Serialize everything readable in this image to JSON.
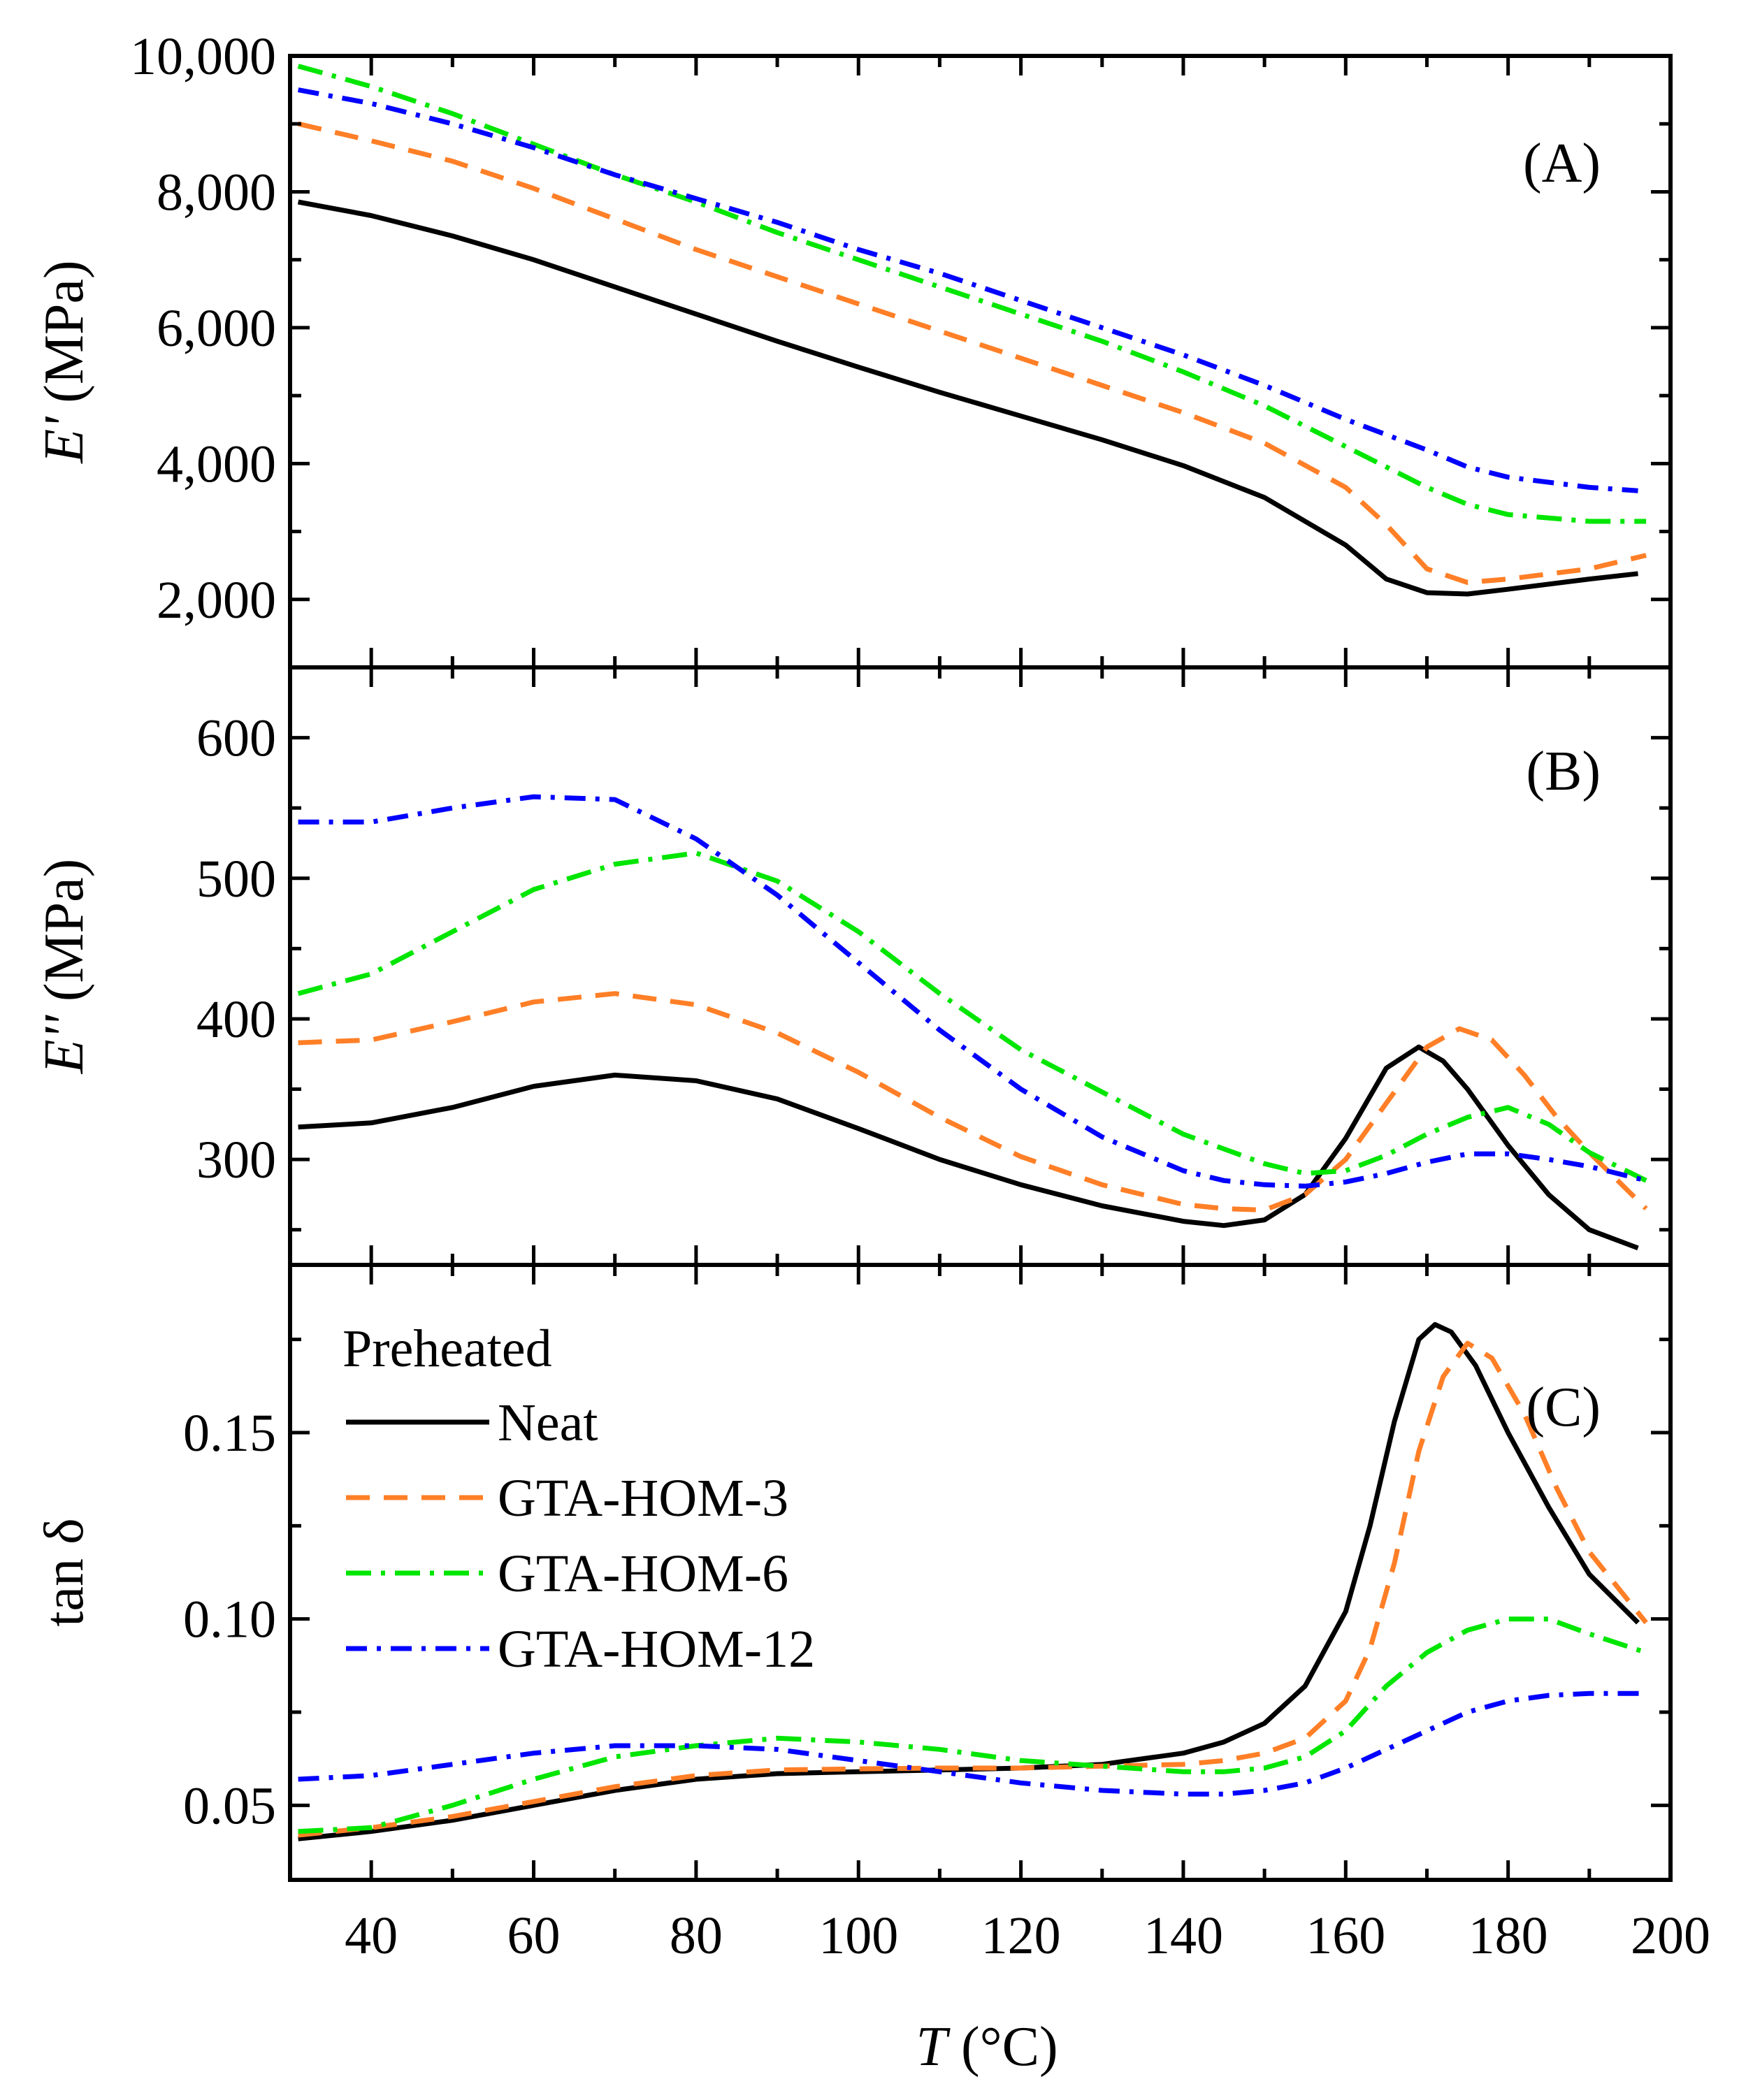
{
  "chart_data": [
    {
      "type": "line",
      "panel_label": "(A)",
      "ylabel_symbol": "E'",
      "ylabel_unit": "(MPa)",
      "ylim": [
        1000,
        10000
      ],
      "yticks": [
        2000,
        4000,
        6000,
        8000,
        10000
      ],
      "ytick_labels": [
        "2,000",
        "4,000",
        "6,000",
        "8,000",
        "10,000"
      ],
      "series": [
        {
          "name": "Neat",
          "x": [
            31,
            40,
            50,
            60,
            70,
            80,
            90,
            100,
            110,
            120,
            130,
            140,
            150,
            160,
            165,
            170,
            175,
            180,
            190,
            196
          ],
          "values": [
            7850,
            7650,
            7350,
            7000,
            6600,
            6200,
            5800,
            5420,
            5050,
            4700,
            4350,
            3970,
            3500,
            2800,
            2300,
            2100,
            2080,
            2150,
            2300,
            2380
          ]
        },
        {
          "name": "GTA-HOM-3",
          "x": [
            31,
            40,
            50,
            60,
            70,
            80,
            90,
            100,
            110,
            120,
            130,
            140,
            150,
            160,
            165,
            170,
            175,
            180,
            190,
            197
          ],
          "values": [
            9000,
            8750,
            8450,
            8050,
            7600,
            7150,
            6750,
            6350,
            5950,
            5550,
            5150,
            4750,
            4300,
            3650,
            3100,
            2450,
            2250,
            2300,
            2450,
            2650
          ]
        },
        {
          "name": "GTA-HOM-6",
          "x": [
            31,
            40,
            50,
            60,
            70,
            80,
            90,
            100,
            110,
            120,
            130,
            140,
            150,
            160,
            170,
            175,
            180,
            190,
            197
          ],
          "values": [
            9850,
            9550,
            9150,
            8700,
            8250,
            7850,
            7400,
            7000,
            6600,
            6200,
            5800,
            5350,
            4850,
            4250,
            3650,
            3400,
            3250,
            3150,
            3150
          ]
        },
        {
          "name": "GTA-HOM-12",
          "x": [
            31,
            40,
            50,
            60,
            70,
            80,
            90,
            100,
            110,
            120,
            130,
            140,
            150,
            160,
            170,
            175,
            180,
            190,
            196
          ],
          "values": [
            9500,
            9300,
            9000,
            8650,
            8250,
            7900,
            7550,
            7150,
            6800,
            6400,
            6000,
            5600,
            5150,
            4650,
            4200,
            3950,
            3800,
            3650,
            3600
          ]
        }
      ]
    },
    {
      "type": "line",
      "panel_label": "(B)",
      "ylabel_symbol": "E''",
      "ylabel_unit": "(MPa)",
      "ylim": [
        225,
        650
      ],
      "yticks": [
        300,
        400,
        500,
        600
      ],
      "ytick_labels": [
        "300",
        "400",
        "500",
        "600"
      ],
      "series": [
        {
          "name": "Neat",
          "x": [
            31,
            40,
            50,
            60,
            70,
            80,
            90,
            100,
            110,
            120,
            130,
            140,
            145,
            150,
            155,
            160,
            165,
            169,
            172,
            175,
            180,
            185,
            190,
            196
          ],
          "values": [
            323,
            326,
            337,
            352,
            360,
            356,
            343,
            322,
            300,
            282,
            267,
            256,
            253,
            257,
            275,
            315,
            365,
            380,
            370,
            350,
            310,
            275,
            250,
            237
          ]
        },
        {
          "name": "GTA-HOM-3",
          "x": [
            31,
            40,
            50,
            60,
            70,
            80,
            90,
            100,
            110,
            120,
            130,
            140,
            145,
            150,
            155,
            160,
            165,
            170,
            174,
            178,
            182,
            186,
            190,
            197
          ],
          "values": [
            383,
            385,
            398,
            412,
            418,
            410,
            390,
            362,
            330,
            302,
            282,
            268,
            265,
            264,
            275,
            300,
            340,
            380,
            393,
            385,
            360,
            330,
            305,
            265
          ]
        },
        {
          "name": "GTA-HOM-6",
          "x": [
            31,
            40,
            50,
            60,
            70,
            80,
            90,
            100,
            110,
            120,
            130,
            140,
            150,
            155,
            160,
            165,
            170,
            175,
            180,
            185,
            190,
            197
          ],
          "values": [
            418,
            432,
            462,
            492,
            510,
            518,
            498,
            462,
            418,
            378,
            348,
            318,
            297,
            290,
            292,
            303,
            318,
            330,
            337,
            325,
            305,
            285
          ]
        },
        {
          "name": "GTA-HOM-12",
          "x": [
            31,
            40,
            50,
            60,
            70,
            80,
            90,
            100,
            110,
            120,
            130,
            140,
            145,
            150,
            155,
            160,
            165,
            170,
            175,
            180,
            185,
            190,
            197
          ],
          "values": [
            540,
            540,
            550,
            558,
            556,
            528,
            488,
            440,
            392,
            350,
            316,
            292,
            285,
            282,
            281,
            284,
            290,
            298,
            304,
            304,
            300,
            295,
            285
          ]
        }
      ]
    },
    {
      "type": "line",
      "panel_label": "(C)",
      "ylabel": "tan δ",
      "xlabel_symbol": "T",
      "xlabel_unit": "(°C)",
      "xlim": [
        30,
        200
      ],
      "xticks": [
        40,
        60,
        80,
        100,
        120,
        140,
        160,
        180,
        200
      ],
      "xtick_labels": [
        "40",
        "60",
        "80",
        "100",
        "120",
        "140",
        "160",
        "180",
        "200"
      ],
      "ylim": [
        0.03,
        0.195
      ],
      "yticks": [
        0.05,
        0.1,
        0.15
      ],
      "ytick_labels": [
        "0.05",
        "0.10",
        "0.15"
      ],
      "legend": {
        "title": "Preheated",
        "position": "top-left"
      },
      "series": [
        {
          "name": "Neat",
          "x": [
            31,
            40,
            50,
            60,
            70,
            80,
            90,
            100,
            110,
            120,
            130,
            140,
            145,
            150,
            155,
            160,
            163,
            166,
            169,
            171,
            173,
            176,
            180,
            185,
            190,
            196
          ],
          "values": [
            0.041,
            0.043,
            0.046,
            0.05,
            0.054,
            0.057,
            0.0585,
            0.059,
            0.0595,
            0.06,
            0.061,
            0.064,
            0.067,
            0.072,
            0.082,
            0.102,
            0.125,
            0.153,
            0.175,
            0.179,
            0.177,
            0.168,
            0.15,
            0.13,
            0.112,
            0.099
          ]
        },
        {
          "name": "GTA-HOM-3",
          "x": [
            31,
            40,
            50,
            60,
            70,
            80,
            90,
            100,
            110,
            120,
            130,
            140,
            145,
            150,
            155,
            160,
            163,
            166,
            169,
            172,
            175,
            178,
            182,
            186,
            190,
            197
          ],
          "values": [
            0.042,
            0.044,
            0.047,
            0.051,
            0.055,
            0.058,
            0.0595,
            0.0598,
            0.06,
            0.06,
            0.0605,
            0.061,
            0.062,
            0.064,
            0.068,
            0.078,
            0.092,
            0.115,
            0.145,
            0.165,
            0.174,
            0.17,
            0.155,
            0.135,
            0.118,
            0.099
          ]
        },
        {
          "name": "GTA-HOM-6",
          "x": [
            31,
            40,
            50,
            60,
            70,
            80,
            90,
            100,
            110,
            120,
            130,
            140,
            145,
            150,
            155,
            160,
            165,
            170,
            175,
            180,
            185,
            190,
            197
          ],
          "values": [
            0.043,
            0.044,
            0.05,
            0.057,
            0.063,
            0.066,
            0.068,
            0.067,
            0.065,
            0.062,
            0.0605,
            0.059,
            0.059,
            0.06,
            0.063,
            0.07,
            0.082,
            0.091,
            0.097,
            0.1,
            0.1,
            0.096,
            0.091
          ]
        },
        {
          "name": "GTA-HOM-12",
          "x": [
            31,
            40,
            50,
            60,
            70,
            80,
            90,
            100,
            110,
            120,
            130,
            140,
            145,
            150,
            155,
            160,
            165,
            170,
            175,
            180,
            185,
            190,
            197
          ],
          "values": [
            0.057,
            0.058,
            0.061,
            0.064,
            0.066,
            0.066,
            0.065,
            0.062,
            0.059,
            0.056,
            0.054,
            0.053,
            0.053,
            0.054,
            0.056,
            0.06,
            0.065,
            0.07,
            0.075,
            0.078,
            0.0795,
            0.08,
            0.08
          ]
        }
      ]
    }
  ],
  "style": {
    "colors": {
      "Neat": "#000000",
      "GTA-HOM-3": "#ff7f27",
      "GTA-HOM-6": "#00e600",
      "GTA-HOM-12": "#0000ff"
    }
  }
}
